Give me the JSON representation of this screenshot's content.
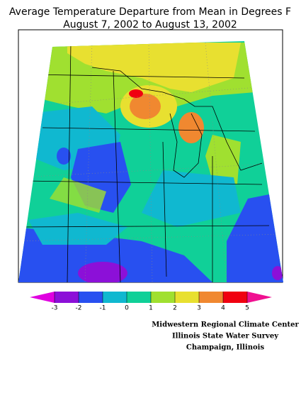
{
  "title": [
    "Average Temperature Departure from Mean in Degrees F",
    "August 7, 2002 to August 13, 2002"
  ],
  "legend": {
    "ticks": [
      -3,
      -2,
      -1,
      0,
      1,
      2,
      3,
      4,
      5
    ],
    "colors": [
      "#e000e0",
      "#8c10d8",
      "#2850f0",
      "#10b8d0",
      "#10d098",
      "#a0e030",
      "#e8e030",
      "#f08830",
      "#f00010",
      "#f01090"
    ]
  },
  "credits": [
    "Midwestern Regional Climate Center",
    "Illinois State Water Survey",
    "Champaign, Illinois"
  ]
}
